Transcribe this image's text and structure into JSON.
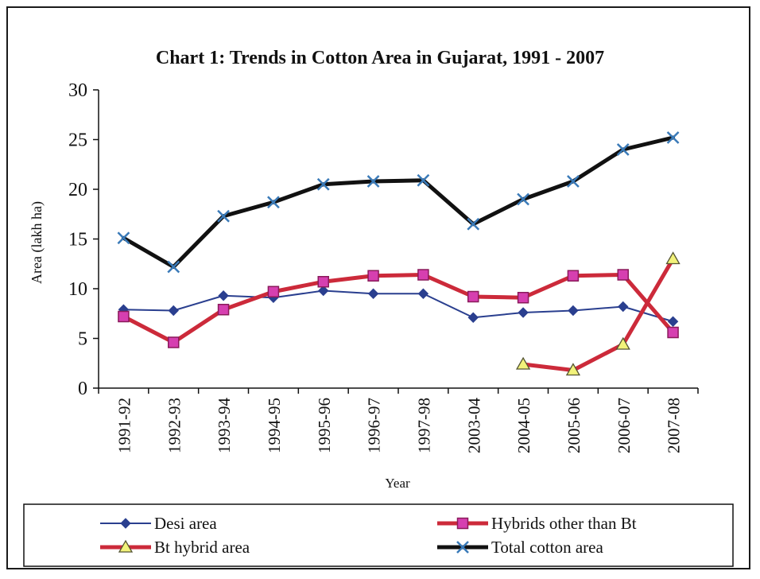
{
  "chart_data": {
    "type": "line",
    "title": "Chart 1: Trends in Cotton Area in Gujarat, 1991 -  2007",
    "xlabel": "Year",
    "ylabel": "Area (lakh ha)",
    "ylim": [
      0,
      30
    ],
    "yticks": [
      "0",
      "5",
      "10",
      "15",
      "20",
      "25",
      "30"
    ],
    "categories": [
      "1991-92",
      "1992-93",
      "1993-94",
      "1994-95",
      "1995-96",
      "1996-97",
      "1997-98",
      "2003-04",
      "2004-05",
      "2005-06",
      "2006-07",
      "2007-08"
    ],
    "grid": false,
    "legend_position": "bottom",
    "series": [
      {
        "name": "Desi area",
        "color": "#2a3f8f",
        "marker": "diamond",
        "values": [
          7.9,
          7.8,
          9.3,
          9.1,
          9.8,
          9.5,
          9.5,
          7.1,
          7.6,
          7.8,
          8.2,
          6.7
        ]
      },
      {
        "name": "Hybrids other than Bt",
        "color": "#cc2a3a",
        "marker": "square",
        "marker_color": "#d63fb0",
        "values": [
          7.2,
          4.6,
          7.9,
          9.7,
          10.7,
          11.3,
          11.4,
          9.2,
          9.1,
          11.3,
          11.4,
          5.6
        ]
      },
      {
        "name": "Bt hybrid area",
        "color": "#cc2a3a",
        "marker": "triangle",
        "marker_color": "#f2f27a",
        "values": [
          null,
          null,
          null,
          null,
          null,
          null,
          null,
          null,
          2.4,
          1.8,
          4.4,
          13.0
        ]
      },
      {
        "name": "Total cotton area",
        "color": "#111111",
        "marker": "x",
        "marker_color": "#3a7ab8",
        "values": [
          15.1,
          12.2,
          17.3,
          18.7,
          20.5,
          20.8,
          20.9,
          16.5,
          19.0,
          20.8,
          24.0,
          25.2
        ]
      }
    ]
  }
}
